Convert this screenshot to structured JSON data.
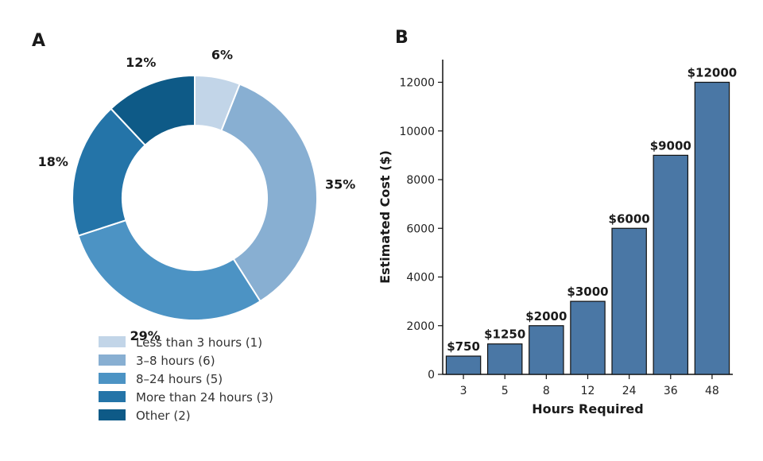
{
  "colors": {
    "slices": [
      "#c2d5e8",
      "#88afd2",
      "#4c93c4",
      "#2474a8",
      "#0e5a87"
    ],
    "bar": "#4a77a5",
    "bar_edge": "#111111",
    "axis": "#111111"
  },
  "chart_data": [
    {
      "panel": "A",
      "type": "pie",
      "donut": true,
      "slices": [
        {
          "label": "Less than 3 hours (1)",
          "percent": 6,
          "percent_label": "6%"
        },
        {
          "label": "3–8 hours (6)",
          "percent": 35,
          "percent_label": "35%"
        },
        {
          "label": "8–24 hours (5)",
          "percent": 29,
          "percent_label": "29%"
        },
        {
          "label": "More than 24 hours (3)",
          "percent": 18,
          "percent_label": "18%"
        },
        {
          "label": "Other (2)",
          "percent": 12,
          "percent_label": "12%"
        }
      ],
      "legend_position": "bottom"
    },
    {
      "panel": "B",
      "type": "bar",
      "categories": [
        "3",
        "5",
        "8",
        "12",
        "24",
        "36",
        "48"
      ],
      "values": [
        750,
        1250,
        2000,
        3000,
        6000,
        9000,
        12000
      ],
      "data_labels": [
        "$750",
        "$1250",
        "$2000",
        "$3000",
        "$6000",
        "$9000",
        "$12000"
      ],
      "xlabel": "Hours Required",
      "ylabel": "Estimated Cost ($)",
      "ylim": [
        0,
        12800
      ],
      "yticks": [
        0,
        2000,
        4000,
        6000,
        8000,
        10000,
        12000
      ],
      "ytick_labels": [
        "0",
        "2000",
        "4000",
        "6000",
        "8000",
        "10000",
        "12000"
      ],
      "grid": false
    }
  ]
}
